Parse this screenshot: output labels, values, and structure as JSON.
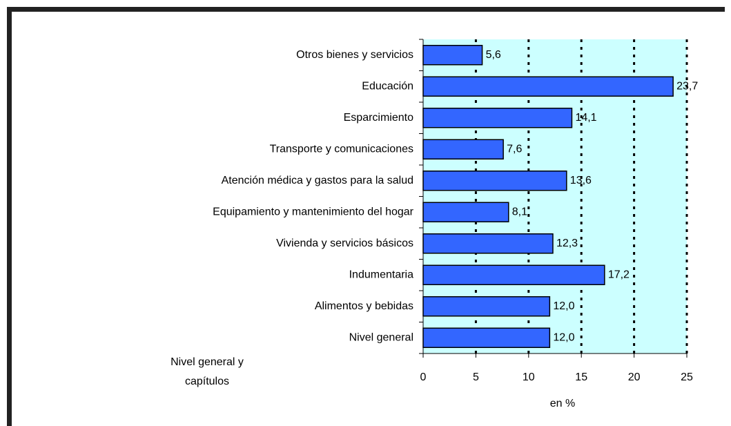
{
  "chart_data": {
    "type": "bar",
    "orientation": "horizontal",
    "categories": [
      "Otros bienes y servicios",
      "Educación",
      "Esparcimiento",
      "Transporte y comunicaciones",
      "Atención médica y gastos para la salud",
      "Equipamiento y mantenimiento del hogar",
      "Vivienda y servicios básicos",
      "Indumentaria",
      "Alimentos y bebidas",
      "Nivel general"
    ],
    "values": [
      5.6,
      23.7,
      14.1,
      7.6,
      13.6,
      8.1,
      12.3,
      17.2,
      12.0,
      12.0
    ],
    "value_labels": [
      "5,6",
      "23,7",
      "14,1",
      "7,6",
      "13,6",
      "8,1",
      "12,3",
      "17,2",
      "12,0",
      "12,0"
    ],
    "color": "#3366ff",
    "plot_background": "#ccffff",
    "xlim": [
      0,
      25
    ],
    "xticks": [
      0,
      5,
      10,
      15,
      20,
      25
    ],
    "grid": true,
    "xlabel": "en %",
    "ylabel": [
      "Nivel general y",
      "capítulos"
    ]
  }
}
